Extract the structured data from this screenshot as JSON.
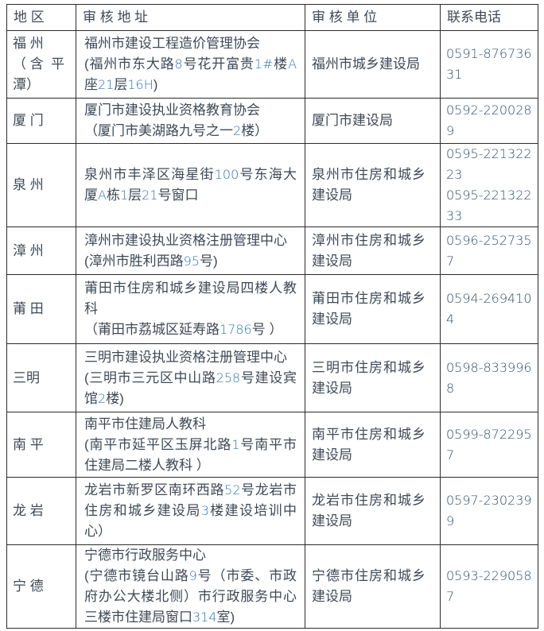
{
  "colors": {
    "text": "#3e4956",
    "address_numbers": "#2e75b6",
    "phone_text": "#2e506e",
    "border": "#2b2b2b",
    "background": "#ffffff"
  },
  "table": {
    "headers": [
      "地 区",
      "审 核  地 址",
      "审 核  单 位",
      "联系电话"
    ],
    "rows": [
      {
        "region": "福 州\n（ 含  平\n潭）",
        "address": [
          "福州市建设工程造价管理协会",
          "(福州市东大路8号花开富贵1#楼A座21层16H)"
        ],
        "unit": "福州市城乡建设局",
        "phones": [
          "0591-87673631"
        ]
      },
      {
        "region": "厦 门",
        "address": [
          "厦门市建设执业资格教育协会",
          "（厦门市美湖路九号之一2楼）"
        ],
        "unit": "厦门市建设局",
        "phones": [
          "0592-2200289"
        ]
      },
      {
        "region": "泉 州",
        "address": [
          "泉州市丰泽区海星街100号东海大厦A栋1层21号窗口"
        ],
        "unit": "泉州市住房和城乡建设局",
        "phones": [
          "0595-22132223",
          "0595-22132233"
        ]
      },
      {
        "region": "漳 州",
        "address": [
          "漳州市建设执业资格注册管理中心",
          "(漳州市胜利西路95号)"
        ],
        "unit": "漳州市住房和城乡建设局",
        "phones": [
          "0596-2527357"
        ]
      },
      {
        "region": "莆 田",
        "address": [
          "莆田市住房和城乡建设局四楼人教科",
          "（莆田市荔城区延寿路1786号 ）"
        ],
        "unit": "莆田市住房和城乡建设局",
        "phones": [
          "0594-2694104"
        ]
      },
      {
        "region": "三明",
        "address": [
          "三明市建设执业资格注册管理中心",
          "(三明市三元区中山路258号建设宾馆2楼)"
        ],
        "unit": "三明市住房和城乡建设局",
        "phones": [
          "0598-8339968"
        ]
      },
      {
        "region": "南 平",
        "address": [
          "南平市住建局人教科",
          "(南平市延平区玉屏北路1号南平市住建局二楼人教科 ）"
        ],
        "unit": "南平市住房和城乡建设局",
        "phones": [
          "0599-8722957"
        ]
      },
      {
        "region": "龙 岩",
        "address": [
          "龙岩市新罗区南环西路52号龙岩市住房和城乡建设局3楼建设培训中心）"
        ],
        "unit": "龙岩市住房和城乡建设局",
        "phones": [
          "0597-2302399"
        ]
      },
      {
        "region": "宁 德",
        "address": [
          "宁德市行政服务中心",
          "(宁德市镜台山路9号（市委、市政府办公大楼北侧）市行政服务中心三楼市住建局窗口314室)"
        ],
        "unit": "宁德市住房和城乡建设局",
        "phones": [
          "0593-2290587"
        ]
      }
    ]
  }
}
